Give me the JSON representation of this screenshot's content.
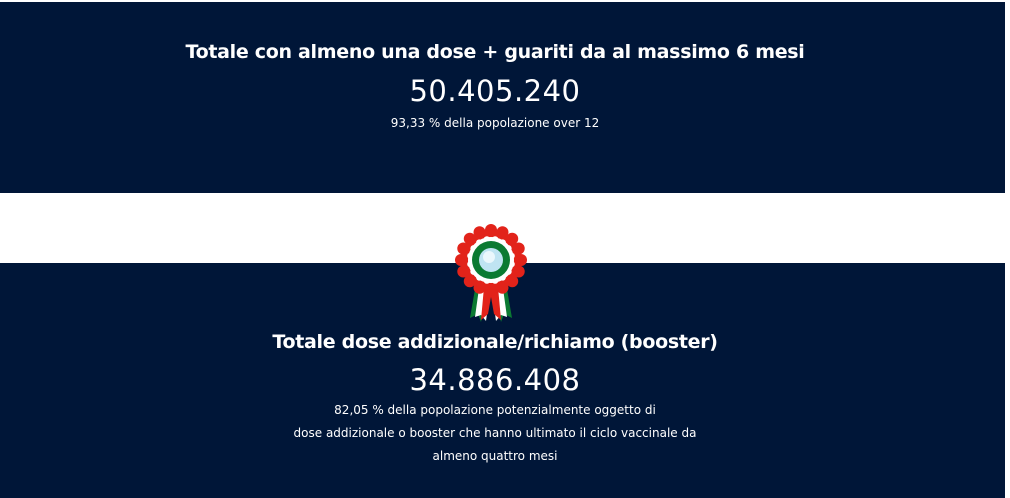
{
  "section1": {
    "title": "Totale con almeno una dose + guariti da al massimo 6 mesi",
    "value": "50.405.240",
    "note": "93,33 % della popolazione over 12"
  },
  "section2": {
    "icon": "italian-rosette-icon",
    "title": "Totale dose addizionale/richiamo (booster)",
    "value": "34.886.408",
    "note_lines": [
      "82,05 % della popolazione potenzialmente oggetto di",
      "dose addizionale o booster che hanno ultimato il ciclo vaccinale da",
      "almeno quattro mesi"
    ]
  },
  "colors": {
    "background": "#001638",
    "red": "#e2231a",
    "green": "#0b7a32",
    "white": "#ffffff"
  }
}
